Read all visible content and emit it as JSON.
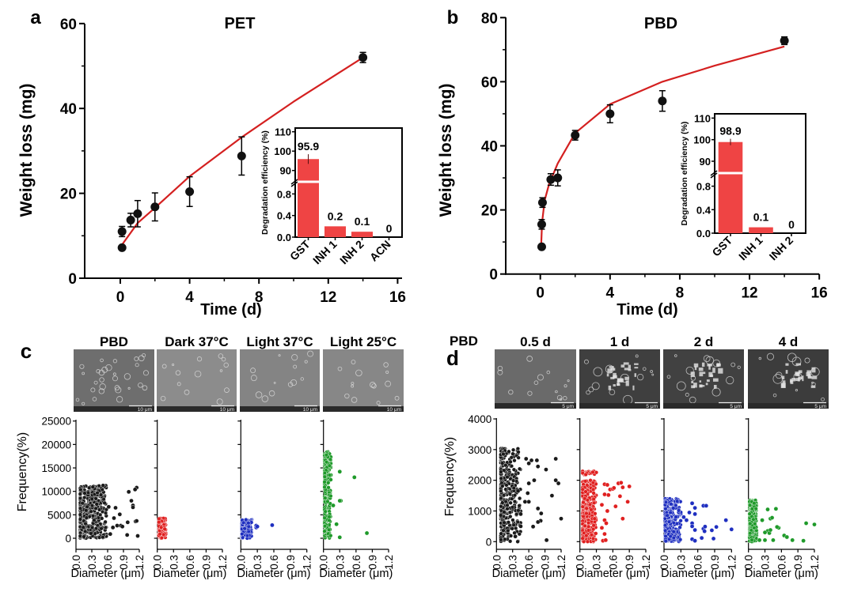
{
  "chart_data": [
    {
      "id": "a",
      "panel_label": "a",
      "type": "scatter",
      "title": "PET",
      "xlabel": "Time (d)",
      "ylabel": "Weight loss (mg)",
      "xlim": [
        -2,
        16
      ],
      "ylim": [
        0,
        60
      ],
      "xticks": [
        "0",
        "4",
        "8",
        "12",
        "16"
      ],
      "yticks": [
        "0",
        "20",
        "40",
        "60"
      ],
      "points": [
        {
          "x": 0.1,
          "y": 7.2,
          "err": 0.5
        },
        {
          "x": 0.1,
          "y": 11.0,
          "err": 1.2
        },
        {
          "x": 0.6,
          "y": 13.7,
          "err": 1.6
        },
        {
          "x": 1,
          "y": 15.2,
          "err": 3.1
        },
        {
          "x": 2,
          "y": 16.8,
          "err": 3.3
        },
        {
          "x": 4,
          "y": 20.4,
          "err": 3.5
        },
        {
          "x": 7,
          "y": 28.8,
          "err": 4.5
        },
        {
          "x": 14,
          "y": 52.0,
          "err": 1.2
        }
      ],
      "fit": {
        "color": "#d42020",
        "x": [
          0.1,
          1,
          2,
          4,
          7,
          10,
          14
        ],
        "y": [
          7.9,
          13.0,
          16.6,
          24.0,
          33.2,
          41.6,
          52.0
        ]
      },
      "inset": {
        "type": "bar",
        "ylabel": "Degradation efficiency (%)",
        "color": "#ef4444",
        "categories": [
          "GST",
          "INH 1",
          "INH 2",
          "ACN"
        ],
        "values": [
          95.9,
          0.2,
          0.1,
          0
        ],
        "errors": [
          2.5,
          0.02,
          0.0,
          0
        ],
        "value_labels": [
          "95.9",
          "0.2",
          "0.1",
          "0"
        ],
        "yticks_lower": [
          "0.0",
          "0.4",
          "0.8"
        ],
        "yticks_upper": [
          "90",
          "100",
          "110"
        ]
      }
    },
    {
      "id": "b",
      "panel_label": "b",
      "type": "scatter",
      "title": "PBD",
      "xlabel": "Time (d)",
      "ylabel": "Weight loss (mg)",
      "xlim": [
        -2,
        16
      ],
      "ylim": [
        0,
        80
      ],
      "xticks": [
        "0",
        "4",
        "8",
        "12",
        "16"
      ],
      "yticks": [
        "0",
        "20",
        "40",
        "60",
        "80"
      ],
      "points": [
        {
          "x": 0.08,
          "y": 8.5,
          "err": 0.5
        },
        {
          "x": 0.08,
          "y": 15.5,
          "err": 1.5
        },
        {
          "x": 0.125,
          "y": 22.3,
          "err": 1.5
        },
        {
          "x": 0.6,
          "y": 29.5,
          "err": 1.8
        },
        {
          "x": 1,
          "y": 30.0,
          "err": 2.5
        },
        {
          "x": 2,
          "y": 43.3,
          "err": 1.5
        },
        {
          "x": 4,
          "y": 50.0,
          "err": 2.8
        },
        {
          "x": 7,
          "y": 54.0,
          "err": 3.2
        },
        {
          "x": 14,
          "y": 72.8,
          "err": 1.2
        }
      ],
      "fit": {
        "color": "#d42020",
        "x": [
          0.05,
          0.1,
          0.25,
          0.5,
          1,
          2,
          4,
          7,
          10,
          14
        ],
        "y": [
          9,
          16,
          23,
          28,
          34.5,
          44,
          53,
          60,
          65,
          71
        ]
      },
      "inset": {
        "type": "bar",
        "ylabel": "Degradation efficiency (%)",
        "color": "#ef4444",
        "categories": [
          "GST",
          "INH 1",
          "INH 2"
        ],
        "values": [
          98.9,
          0.1,
          0
        ],
        "errors": [
          1.5,
          0.005,
          0
        ],
        "value_labels": [
          "98.9",
          "0.1",
          "0"
        ],
        "yticks_lower": [
          "0.0",
          "0.4",
          "0.8"
        ],
        "yticks_upper": [
          "90",
          "100",
          "110"
        ]
      }
    },
    {
      "id": "c",
      "panel_label": "c",
      "type": "scatter",
      "xlabel": "Diameter (μm)",
      "ylabel": "Frequency(%)",
      "xlim": [
        0,
        1.2
      ],
      "ylim": [
        0,
        25000
      ],
      "xticks": [
        "0.0",
        "0.3",
        "0.6",
        "0.9",
        "1.2"
      ],
      "yticks": [
        "0",
        "5000",
        "10000",
        "15000",
        "20000",
        "25000"
      ],
      "subplots": [
        {
          "title": "PBD",
          "color": "#1a1a1a",
          "image_tone": "#6e6e6e",
          "scale_bar": "10 μm",
          "clouds": [
            {
              "d": [
                0.08,
                0.58
              ],
              "f": [
                0,
                11300
              ],
              "n": 420
            }
          ],
          "outliers": [
            [
              1.15,
              10800
            ],
            [
              1.12,
              10400
            ],
            [
              1.0,
              9900
            ],
            [
              1.05,
              8000
            ],
            [
              1.08,
              7000
            ],
            [
              1.08,
              6600
            ],
            [
              0.83,
              5100
            ],
            [
              0.75,
              6500
            ],
            [
              0.72,
              4300
            ],
            [
              0.7,
              2300
            ],
            [
              0.78,
              2700
            ],
            [
              0.85,
              2700
            ],
            [
              0.88,
              2500
            ],
            [
              0.65,
              900
            ],
            [
              0.98,
              3400
            ],
            [
              1.13,
              3600
            ],
            [
              1.15,
              3700
            ],
            [
              0.97,
              700
            ],
            [
              1.17,
              500
            ],
            [
              0.62,
              6700
            ]
          ]
        },
        {
          "title": "Dark 37°C",
          "color": "#e02020",
          "image_tone": "#8c8c8c",
          "scale_bar": "10 μm",
          "clouds": [
            {
              "d": [
                0.03,
                0.16
              ],
              "f": [
                0,
                4300
              ],
              "n": 140
            }
          ],
          "outliers": []
        },
        {
          "title": "Light 37°C",
          "color": "#1f2fc0",
          "image_tone": "#848484",
          "scale_bar": "10 μm",
          "clouds": [
            {
              "d": [
                0.02,
                0.2
              ],
              "f": [
                0,
                4000
              ],
              "n": 140
            }
          ],
          "outliers": [
            [
              0.28,
              2300
            ],
            [
              0.28,
              2700
            ],
            [
              0.3,
              2500
            ],
            [
              0.57,
              2800
            ]
          ]
        },
        {
          "title": "Light 25°C",
          "color": "#1f9a2a",
          "image_tone": "#878787",
          "scale_bar": "10 μm",
          "clouds": [
            {
              "d": [
                0.02,
                0.14
              ],
              "f": [
                0,
                18800
              ],
              "n": 220
            }
          ],
          "outliers": [
            [
              0.3,
              14200
            ],
            [
              0.57,
              13000
            ],
            [
              0.32,
              8000
            ],
            [
              0.3,
              8000
            ],
            [
              0.18,
              7000
            ],
            [
              0.24,
              3000
            ],
            [
              0.3,
              200
            ],
            [
              0.8,
              1100
            ]
          ]
        }
      ]
    },
    {
      "id": "d",
      "panel_label": "d",
      "type": "scatter",
      "row_label": "PBD",
      "xlabel": "Diameter (μm)",
      "ylabel": "Frequency(%)",
      "xlim": [
        0,
        1.2
      ],
      "ylim": [
        0,
        4000
      ],
      "xticks": [
        "0.0",
        "0.3",
        "0.6",
        "0.9",
        "1.2"
      ],
      "yticks": [
        "0",
        "1000",
        "2000",
        "3000",
        "4000"
      ],
      "subplots": [
        {
          "title": "0.5 d",
          "color": "#1a1a1a",
          "image_tone": "#6a6a6a",
          "scale_bar": "5 μm",
          "clouds": [
            {
              "d": [
                0.08,
                0.45
              ],
              "f": [
                0,
                3050
              ],
              "n": 300
            }
          ],
          "outliers": [
            [
              0.55,
              2700
            ],
            [
              0.6,
              2550
            ],
            [
              0.65,
              2650
            ],
            [
              0.75,
              2650
            ],
            [
              0.77,
              2450
            ],
            [
              0.92,
              2350
            ],
            [
              1.1,
              2700
            ],
            [
              1.1,
              2000
            ],
            [
              1.15,
              1900
            ],
            [
              0.7,
              2000
            ],
            [
              0.6,
              1900
            ],
            [
              0.58,
              1580
            ],
            [
              0.6,
              1300
            ],
            [
              0.53,
              1300
            ],
            [
              0.4,
              1650
            ],
            [
              1.03,
              1500
            ],
            [
              0.77,
              1080
            ],
            [
              0.83,
              920
            ],
            [
              0.45,
              900
            ],
            [
              0.82,
              680
            ],
            [
              0.77,
              640
            ],
            [
              0.68,
              490
            ],
            [
              0.45,
              500
            ],
            [
              0.35,
              170
            ],
            [
              0.93,
              50
            ],
            [
              1.2,
              750
            ]
          ]
        },
        {
          "title": "1 d",
          "color": "#e02020",
          "image_tone": "#3f3f3f",
          "scale_bar": "5 μm",
          "clouds": [
            {
              "d": [
                0.05,
                0.3
              ],
              "f": [
                0,
                2000
              ],
              "n": 300
            },
            {
              "d": [
                0.05,
                0.3
              ],
              "f": [
                2180,
                2300
              ],
              "n": 25
            }
          ],
          "outliers": [
            [
              0.45,
              1870
            ],
            [
              0.5,
              1850
            ],
            [
              0.55,
              1700
            ],
            [
              0.6,
              1720
            ],
            [
              0.7,
              1900
            ],
            [
              0.75,
              1920
            ],
            [
              0.9,
              1800
            ],
            [
              0.78,
              1770
            ],
            [
              0.62,
              1750
            ],
            [
              0.45,
              1540
            ],
            [
              0.52,
              1520
            ],
            [
              0.73,
              1480
            ],
            [
              0.87,
              1300
            ],
            [
              0.65,
              1150
            ],
            [
              0.5,
              1000
            ],
            [
              0.4,
              1200
            ],
            [
              0.45,
              700
            ],
            [
              0.48,
              600
            ],
            [
              0.4,
              450
            ],
            [
              0.45,
              250
            ],
            [
              0.78,
              750
            ],
            [
              0.42,
              30
            ],
            [
              0.47,
              50
            ]
          ]
        },
        {
          "title": "2 d",
          "color": "#1f2fc0",
          "image_tone": "#414141",
          "scale_bar": "5 μm",
          "clouds": [
            {
              "d": [
                0.02,
                0.3
              ],
              "f": [
                0,
                1400
              ],
              "n": 300
            }
          ],
          "outliers": [
            [
              0.5,
              1250
            ],
            [
              0.55,
              1100
            ],
            [
              0.7,
              1170
            ],
            [
              0.75,
              1170
            ],
            [
              0.45,
              950
            ],
            [
              0.55,
              900
            ],
            [
              0.35,
              800
            ],
            [
              0.4,
              700
            ],
            [
              0.5,
              600
            ],
            [
              0.5,
              500
            ],
            [
              0.55,
              380
            ],
            [
              0.7,
              420
            ],
            [
              0.73,
              490
            ],
            [
              0.72,
              340
            ],
            [
              0.85,
              370
            ],
            [
              0.93,
              480
            ],
            [
              1.1,
              700
            ],
            [
              1.2,
              400
            ],
            [
              0.67,
              120
            ],
            [
              0.88,
              100
            ],
            [
              0.5,
              80
            ],
            [
              0.55,
              30
            ]
          ]
        },
        {
          "title": "4 d",
          "color": "#1f9a2a",
          "image_tone": "#3c3c3c",
          "scale_bar": "5 μm",
          "clouds": [
            {
              "d": [
                0.02,
                0.15
              ],
              "f": [
                0,
                1350
              ],
              "n": 200
            }
          ],
          "outliers": [
            [
              0.35,
              1050
            ],
            [
              0.5,
              1070
            ],
            [
              0.4,
              750
            ],
            [
              0.43,
              780
            ],
            [
              0.25,
              700
            ],
            [
              0.55,
              450
            ],
            [
              0.52,
              480
            ],
            [
              0.35,
              350
            ],
            [
              0.3,
              300
            ],
            [
              0.38,
              280
            ],
            [
              0.4,
              380
            ],
            [
              0.65,
              200
            ],
            [
              0.7,
              150
            ],
            [
              0.8,
              50
            ],
            [
              1.0,
              30
            ],
            [
              1.05,
              600
            ],
            [
              1.2,
              560
            ],
            [
              0.45,
              50
            ],
            [
              0.3,
              50
            ],
            [
              0.2,
              50
            ]
          ]
        }
      ]
    }
  ]
}
